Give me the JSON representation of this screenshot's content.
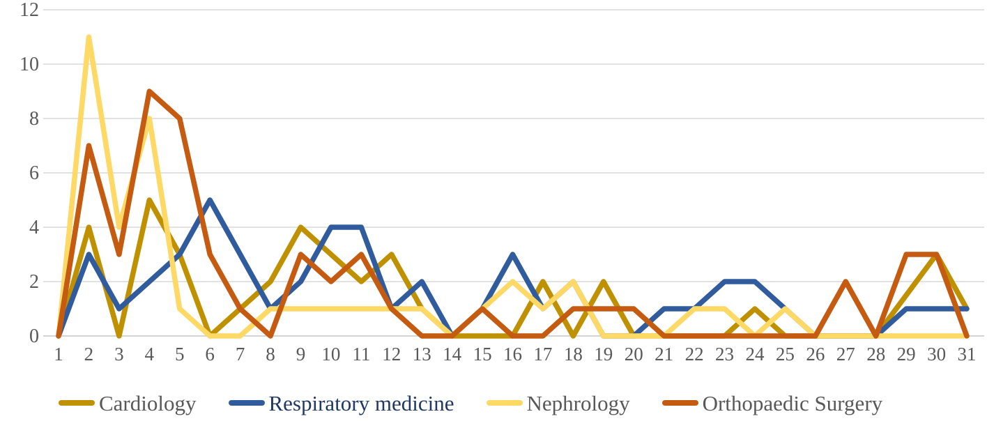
{
  "chart_data": {
    "type": "line",
    "title": "",
    "xlabel": "",
    "ylabel": "",
    "x": [
      1,
      2,
      3,
      4,
      5,
      6,
      7,
      8,
      9,
      10,
      11,
      12,
      13,
      14,
      15,
      16,
      17,
      18,
      19,
      20,
      21,
      22,
      23,
      24,
      25,
      26,
      27,
      28,
      29,
      30,
      31
    ],
    "y_ticks": [
      0,
      2,
      4,
      6,
      8,
      10,
      12
    ],
    "ylim": [
      0,
      12
    ],
    "grid": "horizontal",
    "legend_position": "bottom",
    "series": [
      {
        "name": "Cardiology",
        "color": "#BF9000",
        "label_color": "#595959",
        "values": [
          0,
          4,
          0,
          5,
          3,
          0,
          1,
          2,
          4,
          3,
          2,
          3,
          1,
          0,
          0,
          0,
          2,
          0,
          2,
          0,
          0,
          0,
          0,
          1,
          0,
          0,
          0,
          0,
          1.5,
          3,
          1
        ]
      },
      {
        "name": "Respiratory medicine",
        "color": "#305C9E",
        "label_color": "#1F3864",
        "values": [
          0,
          3,
          1,
          2,
          3,
          5,
          3,
          1,
          2,
          4,
          4,
          1,
          2,
          0,
          1,
          3,
          1,
          2,
          0,
          0,
          1,
          1,
          2,
          2,
          1,
          0,
          0,
          0,
          1,
          1,
          1
        ]
      },
      {
        "name": "Nephrology",
        "color": "#FFD966",
        "label_color": "#595959",
        "values": [
          0,
          11,
          4,
          8,
          1,
          0,
          0,
          1,
          1,
          1,
          1,
          1,
          1,
          0,
          1,
          2,
          1,
          2,
          0,
          0,
          0,
          1,
          1,
          0,
          1,
          0,
          0,
          0,
          0,
          0,
          0
        ]
      },
      {
        "name": "Orthopaedic Surgery",
        "color": "#C55A11",
        "label_color": "#595959",
        "values": [
          0,
          7,
          3,
          9,
          8,
          3,
          1,
          0,
          3,
          2,
          3,
          1,
          0,
          0,
          1,
          0,
          0,
          1,
          1,
          1,
          0,
          0,
          0,
          0,
          0,
          0,
          2,
          0,
          3,
          3,
          0
        ]
      }
    ]
  },
  "style": {
    "gridline_color": "#D9D9D9",
    "axis_line_color": "#C6C6C6",
    "tick_label_color": "#595959",
    "background": "#FFFFFF"
  }
}
